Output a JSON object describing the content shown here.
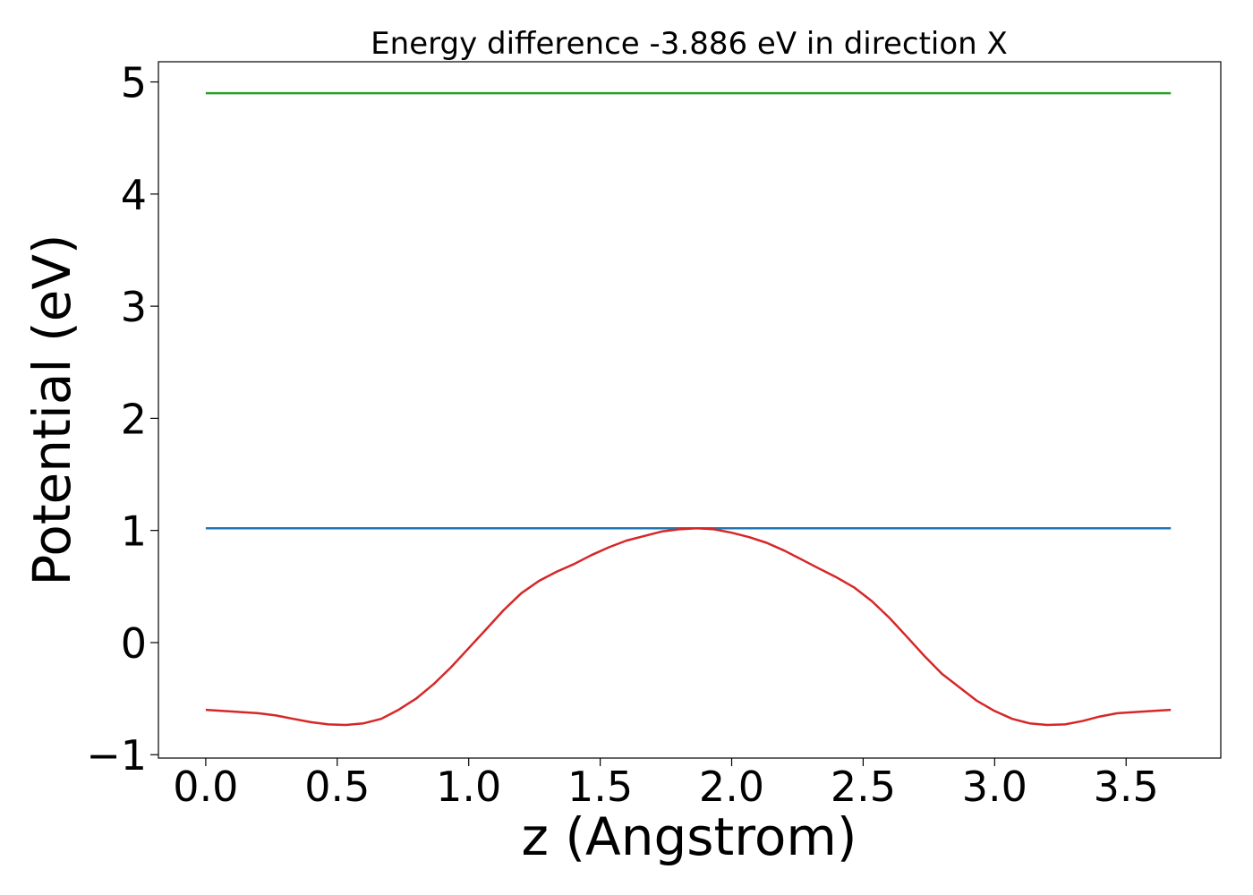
{
  "chart_data": {
    "type": "line",
    "title": "Energy difference -3.886 eV in direction X",
    "xlabel": "z (Angstrom)",
    "ylabel": "Potential (eV)",
    "xlim": [
      -0.18,
      3.86
    ],
    "ylim": [
      -1.03,
      5.18
    ],
    "x_ticks": [
      0.0,
      0.5,
      1.0,
      1.5,
      2.0,
      2.5,
      3.0,
      3.5
    ],
    "x_tick_labels": [
      "0.0",
      "0.5",
      "1.0",
      "1.5",
      "2.0",
      "2.5",
      "3.0",
      "3.5"
    ],
    "y_ticks": [
      -1,
      0,
      1,
      2,
      3,
      4,
      5
    ],
    "y_tick_labels": [
      "−1",
      "0",
      "1",
      "2",
      "3",
      "4",
      "5"
    ],
    "grid": false,
    "legend": "none",
    "series": [
      {
        "color": "#2ca02c",
        "x": [
          0.0,
          3.67
        ],
        "y": [
          4.9,
          4.9
        ]
      },
      {
        "color": "#1f77b4",
        "x": [
          0.0,
          3.67
        ],
        "y": [
          1.02,
          1.02
        ]
      },
      {
        "color": "#d62728",
        "x": [
          0.0,
          0.067,
          0.133,
          0.2,
          0.267,
          0.333,
          0.4,
          0.467,
          0.533,
          0.6,
          0.667,
          0.733,
          0.8,
          0.867,
          0.933,
          1.0,
          1.067,
          1.133,
          1.2,
          1.267,
          1.333,
          1.4,
          1.467,
          1.533,
          1.6,
          1.667,
          1.733,
          1.8,
          1.867,
          1.933,
          2.0,
          2.067,
          2.133,
          2.2,
          2.267,
          2.333,
          2.4,
          2.467,
          2.533,
          2.6,
          2.667,
          2.733,
          2.8,
          2.867,
          2.933,
          3.0,
          3.067,
          3.133,
          3.2,
          3.267,
          3.333,
          3.4,
          3.467,
          3.533,
          3.6,
          3.67
        ],
        "y": [
          -0.6,
          -0.61,
          -0.62,
          -0.63,
          -0.65,
          -0.68,
          -0.71,
          -0.73,
          -0.735,
          -0.72,
          -0.68,
          -0.6,
          -0.5,
          -0.37,
          -0.22,
          -0.05,
          0.12,
          0.29,
          0.44,
          0.55,
          0.63,
          0.7,
          0.78,
          0.85,
          0.91,
          0.95,
          0.99,
          1.01,
          1.02,
          1.01,
          0.98,
          0.94,
          0.89,
          0.82,
          0.74,
          0.66,
          0.58,
          0.49,
          0.37,
          0.22,
          0.05,
          -0.12,
          -0.28,
          -0.4,
          -0.52,
          -0.61,
          -0.68,
          -0.72,
          -0.735,
          -0.73,
          -0.7,
          -0.66,
          -0.63,
          -0.62,
          -0.61,
          -0.6
        ]
      }
    ]
  }
}
